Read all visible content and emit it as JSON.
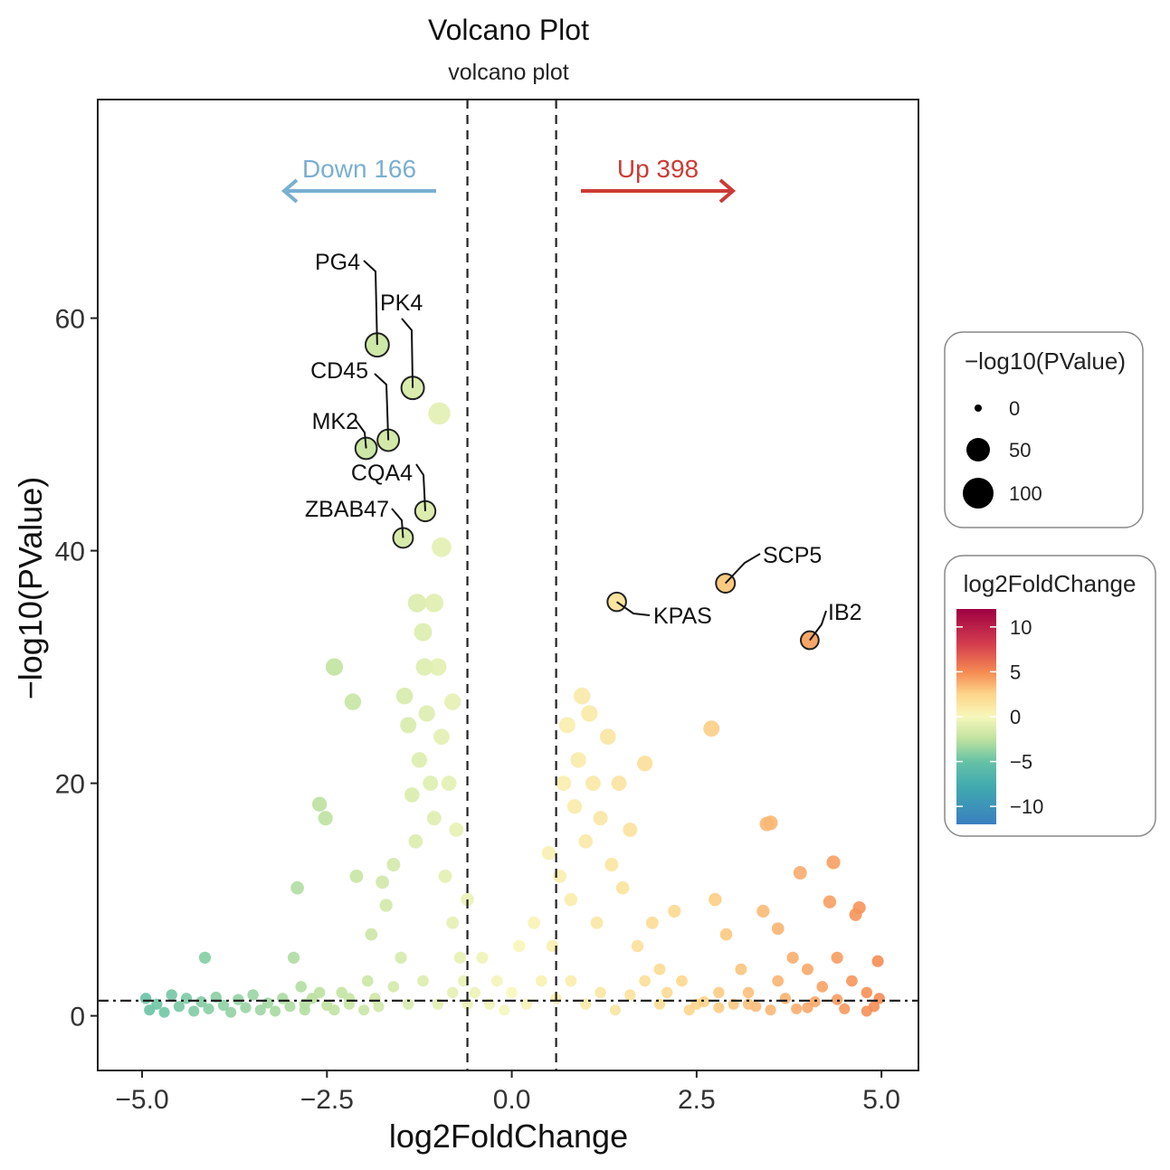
{
  "chart_data": {
    "type": "scatter",
    "title": "Volcano Plot",
    "subtitle": "volcano plot",
    "xlabel": "log2FoldChange",
    "ylabel": "-log10(PValue)",
    "xlim": [
      -5.6,
      5.5
    ],
    "ylim": [
      -4.7,
      78.8
    ],
    "x_ticks": [
      -5.0,
      -2.5,
      0.0,
      2.5,
      5.0
    ],
    "x_tick_labels": [
      "-5.0",
      "-2.5",
      "0.0",
      "2.5",
      "5.0"
    ],
    "y_ticks": [
      0,
      20,
      40,
      60
    ],
    "y_tick_labels": [
      "0",
      "20",
      "40",
      "60"
    ],
    "grid": false,
    "thresholds": {
      "log2fc": [
        -0.6,
        0.6
      ],
      "neg_log10_p": 1.3
    },
    "annotations": {
      "down": {
        "text": "Down 166",
        "color": "#7aafd0"
      },
      "up": {
        "text": "Up 398",
        "color": "#cc3b35"
      }
    },
    "labeled_points": [
      {
        "label": "PG4",
        "x": -1.82,
        "y": 57.7
      },
      {
        "label": "PK4",
        "x": -1.34,
        "y": 54.0
      },
      {
        "label": "CD45",
        "x": -1.67,
        "y": 49.5
      },
      {
        "label": "MK2",
        "x": -1.97,
        "y": 48.8
      },
      {
        "label": "CQA4",
        "x": -1.17,
        "y": 43.4
      },
      {
        "label": "ZBAB47",
        "x": -1.47,
        "y": 41.1
      },
      {
        "label": "SCP5",
        "x": 2.89,
        "y": 37.2
      },
      {
        "label": "KPAS",
        "x": 1.42,
        "y": 35.6
      },
      {
        "label": "IB2",
        "x": 4.03,
        "y": 32.3
      }
    ],
    "points": [
      [
        -4.95,
        1.5
      ],
      [
        -4.9,
        0.5
      ],
      [
        -4.8,
        1
      ],
      [
        -4.7,
        0.3
      ],
      [
        -4.6,
        1.8
      ],
      [
        -4.5,
        0.8
      ],
      [
        -4.4,
        1.5
      ],
      [
        -4.3,
        0.4
      ],
      [
        -4.2,
        1.2
      ],
      [
        -4.15,
        5
      ],
      [
        -4.1,
        0.6
      ],
      [
        -4,
        1.6
      ],
      [
        -3.9,
        0.9
      ],
      [
        -3.8,
        0.3
      ],
      [
        -3.7,
        1.4
      ],
      [
        -3.6,
        0.7
      ],
      [
        -3.5,
        1.8
      ],
      [
        -3.4,
        0.5
      ],
      [
        -3.3,
        1.1
      ],
      [
        -3.2,
        0.4
      ],
      [
        -3.1,
        1.5
      ],
      [
        -3,
        0.8
      ],
      [
        -2.95,
        5
      ],
      [
        -2.9,
        11
      ],
      [
        -2.85,
        2.5
      ],
      [
        -2.8,
        0.5
      ],
      [
        -2.8,
        1
      ],
      [
        -2.7,
        1.5
      ],
      [
        -2.6,
        18.2
      ],
      [
        -2.6,
        2
      ],
      [
        -2.52,
        17
      ],
      [
        -2.5,
        0.9
      ],
      [
        -2.4,
        30
      ],
      [
        -2.4,
        0.5
      ],
      [
        -2.3,
        2
      ],
      [
        -2.2,
        1
      ],
      [
        -2.2,
        1.5
      ],
      [
        -2.15,
        27
      ],
      [
        -2.1,
        12
      ],
      [
        -2,
        0.5
      ],
      [
        -1.95,
        3
      ],
      [
        -1.9,
        7
      ],
      [
        -1.85,
        1.5
      ],
      [
        -1.8,
        0.8
      ],
      [
        -1.75,
        11.5
      ],
      [
        -1.7,
        9.5
      ],
      [
        -1.6,
        13
      ],
      [
        -1.6,
        2.5
      ],
      [
        -1.5,
        5
      ],
      [
        -1.45,
        27.5
      ],
      [
        -1.4,
        25
      ],
      [
        -1.4,
        1
      ],
      [
        -1.35,
        19
      ],
      [
        -1.3,
        15
      ],
      [
        -1.28,
        35.5
      ],
      [
        -1.25,
        22
      ],
      [
        -1.2,
        33
      ],
      [
        -1.2,
        3
      ],
      [
        -1.18,
        30
      ],
      [
        -1.15,
        26
      ],
      [
        -1.1,
        20
      ],
      [
        -1.05,
        35.5
      ],
      [
        -1.05,
        17
      ],
      [
        -1.0,
        30
      ],
      [
        -1.0,
        1
      ],
      [
        -0.98,
        51.8
      ],
      [
        -0.95,
        40.3
      ],
      [
        -0.95,
        24
      ],
      [
        -0.9,
        12
      ],
      [
        -0.85,
        20
      ],
      [
        -0.8,
        27
      ],
      [
        -0.8,
        8
      ],
      [
        -0.8,
        2
      ],
      [
        -0.75,
        16
      ],
      [
        -0.7,
        5
      ],
      [
        -0.65,
        3
      ],
      [
        -0.6,
        10
      ],
      [
        -0.6,
        1
      ],
      [
        -0.5,
        2
      ],
      [
        -0.4,
        5
      ],
      [
        -0.3,
        1
      ],
      [
        -0.2,
        3
      ],
      [
        -0.1,
        0.5
      ],
      [
        0,
        2
      ],
      [
        0.1,
        6
      ],
      [
        0.2,
        1
      ],
      [
        0.3,
        8
      ],
      [
        0.4,
        3
      ],
      [
        0.5,
        14
      ],
      [
        0.55,
        6
      ],
      [
        0.6,
        1.5
      ],
      [
        0.65,
        12
      ],
      [
        0.7,
        20
      ],
      [
        0.75,
        25
      ],
      [
        0.8,
        10
      ],
      [
        0.8,
        3
      ],
      [
        0.85,
        18
      ],
      [
        0.9,
        22
      ],
      [
        0.95,
        27.5
      ],
      [
        1.0,
        15
      ],
      [
        1.0,
        1
      ],
      [
        1.05,
        26
      ],
      [
        1.1,
        20
      ],
      [
        1.15,
        8
      ],
      [
        1.2,
        17
      ],
      [
        1.2,
        2
      ],
      [
        1.3,
        24
      ],
      [
        1.35,
        13
      ],
      [
        1.4,
        0.5
      ],
      [
        1.45,
        20
      ],
      [
        1.5,
        11
      ],
      [
        1.6,
        16
      ],
      [
        1.6,
        1.8
      ],
      [
        1.7,
        6
      ],
      [
        1.8,
        21.7
      ],
      [
        1.8,
        3
      ],
      [
        1.9,
        8
      ],
      [
        2.0,
        4
      ],
      [
        2.0,
        1
      ],
      [
        2.1,
        2
      ],
      [
        2.2,
        9
      ],
      [
        2.3,
        3
      ],
      [
        2.4,
        0.5
      ],
      [
        2.5,
        1
      ],
      [
        2.6,
        1.2
      ],
      [
        2.7,
        24.7
      ],
      [
        2.75,
        10
      ],
      [
        2.8,
        2
      ],
      [
        2.8,
        0.7
      ],
      [
        2.9,
        7
      ],
      [
        3.0,
        1
      ],
      [
        3.1,
        4
      ],
      [
        3.2,
        2
      ],
      [
        3.2,
        1
      ],
      [
        3.3,
        0.8
      ],
      [
        3.4,
        9
      ],
      [
        3.45,
        16.5
      ],
      [
        3.5,
        16.6
      ],
      [
        3.5,
        0.5
      ],
      [
        3.6,
        7.5
      ],
      [
        3.6,
        3
      ],
      [
        3.7,
        1.5
      ],
      [
        3.8,
        5
      ],
      [
        3.85,
        0.6
      ],
      [
        3.9,
        12.3
      ],
      [
        4.0,
        4
      ],
      [
        4.0,
        0.7
      ],
      [
        4.1,
        1.2
      ],
      [
        4.2,
        2.5
      ],
      [
        4.3,
        9.8
      ],
      [
        4.35,
        13.2
      ],
      [
        4.4,
        5
      ],
      [
        4.4,
        1.4
      ],
      [
        4.5,
        0.6
      ],
      [
        4.6,
        3
      ],
      [
        4.65,
        8.7
      ],
      [
        4.7,
        9.3
      ],
      [
        4.8,
        2
      ],
      [
        4.8,
        0.4
      ],
      [
        4.9,
        0.8
      ],
      [
        4.95,
        4.7
      ],
      [
        4.97,
        1.5
      ]
    ]
  },
  "legend_size": {
    "title": "−log10(PValue)",
    "entries": [
      {
        "label": "0",
        "value": 0
      },
      {
        "label": "50",
        "value": 50
      },
      {
        "label": "100",
        "value": 100
      }
    ]
  },
  "legend_color": {
    "title": "log2FoldChange",
    "range": [
      -12,
      12
    ],
    "ticks": [
      {
        "label": "10",
        "value": 10
      },
      {
        "label": "5",
        "value": 5
      },
      {
        "label": "0",
        "value": 0
      },
      {
        "label": "−5",
        "value": -5
      },
      {
        "label": "−10",
        "value": -10
      }
    ],
    "colors": {
      "-12": "#3a7fc0",
      "-8": "#3fa8b0",
      "-5": "#66c2a5",
      "-2.5": "#bfe2a0",
      "0": "#f7f7bb",
      "2.5": "#fdd58a",
      "5": "#f58a52",
      "8": "#d53e4f",
      "12": "#9e0142"
    }
  }
}
